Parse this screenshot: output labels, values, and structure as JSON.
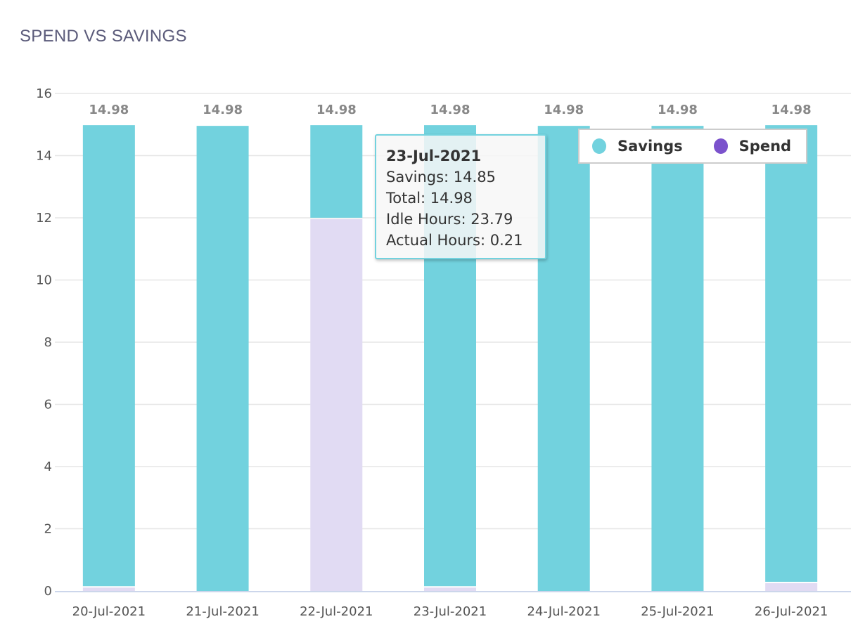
{
  "chart_data": {
    "type": "bar",
    "stacked": true,
    "title": "SPEND VS SAVINGS",
    "categories": [
      "20-Jul-2021",
      "21-Jul-2021",
      "22-Jul-2021",
      "23-Jul-2021",
      "24-Jul-2021",
      "25-Jul-2021",
      "26-Jul-2021"
    ],
    "series": [
      {
        "name": "Spend",
        "color": "#e1dbf3",
        "legend_color": "#7b52cc",
        "values": [
          0.13,
          0,
          11.98,
          0.13,
          0,
          0,
          0.27
        ]
      },
      {
        "name": "Savings",
        "color": "#72d2de",
        "values": [
          14.85,
          14.98,
          3.0,
          14.85,
          14.98,
          14.98,
          14.71
        ]
      }
    ],
    "totals": [
      "14.98",
      "14.98",
      "14.98",
      "14.98",
      "14.98",
      "14.98",
      "14.98"
    ],
    "ylim": [
      0,
      16
    ],
    "yticks": [
      "0",
      "2",
      "4",
      "6",
      "8",
      "10",
      "12",
      "14",
      "16"
    ],
    "grid": true,
    "legend": {
      "placement": "top-right",
      "items": [
        "Savings",
        "Spend"
      ]
    },
    "tooltip": {
      "title": "23-Jul-2021",
      "lines": [
        "Savings: 14.85",
        "Total: 14.98",
        "Idle Hours: 23.79",
        "Actual Hours: 0.21"
      ]
    }
  }
}
